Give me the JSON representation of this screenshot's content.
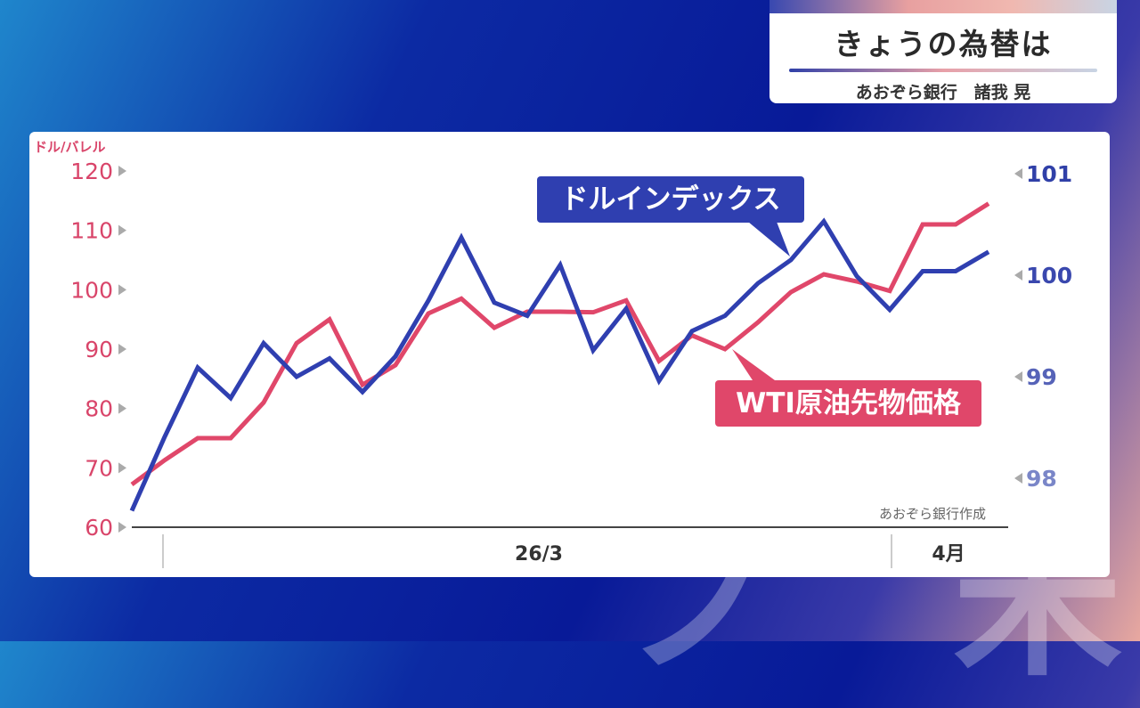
{
  "header": {
    "title": "きょうの為替は",
    "subtitle": "あおぞら銀行　諸我 晃"
  },
  "colors": {
    "wti": "#e0476a",
    "dxy": "#2f3fb0"
  },
  "chart_data": {
    "type": "line",
    "title": "",
    "left_axis": {
      "label": "ドル/バレル",
      "ticks": [
        60,
        70,
        80,
        90,
        100,
        110,
        120
      ],
      "ylim": [
        60,
        120
      ]
    },
    "right_axis": {
      "ticks": [
        98,
        99,
        100,
        101
      ],
      "ylim": [
        98,
        101
      ]
    },
    "x_labels": [
      "26/3",
      "4月"
    ],
    "credit": "あおぞら銀行作成",
    "series": [
      {
        "name": "WTI原油先物価格",
        "axis": "left",
        "values": [
          67.2,
          71.3,
          75,
          75,
          81,
          91,
          95,
          84,
          87.3,
          96,
          98.5,
          93.6,
          96.3,
          96.3,
          96.2,
          98.2,
          88,
          92.3,
          90,
          94.5,
          99.6,
          102.6,
          101.4,
          99.8,
          111,
          111,
          114.5
        ]
      },
      {
        "name": "ドルインデックス",
        "axis": "right",
        "values": [
          97.68,
          98.41,
          99.09,
          98.79,
          99.33,
          99.0,
          99.18,
          98.85,
          99.2,
          99.75,
          100.37,
          99.73,
          99.6,
          100.1,
          99.26,
          99.67,
          98.96,
          99.45,
          99.6,
          99.92,
          100.15,
          100.53,
          99.99,
          99.66,
          100.04,
          100.04,
          100.23
        ]
      }
    ]
  }
}
